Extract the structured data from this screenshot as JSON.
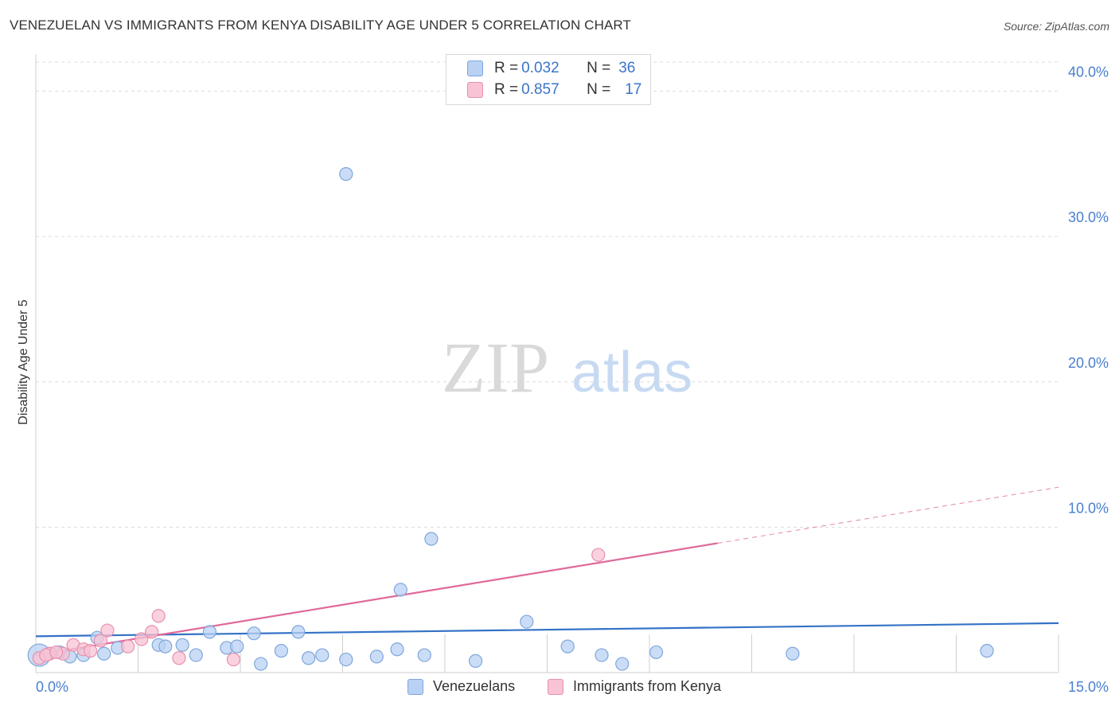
{
  "title": "VENEZUELAN VS IMMIGRANTS FROM KENYA DISABILITY AGE UNDER 5 CORRELATION CHART",
  "source": "Source: ZipAtlas.com",
  "watermark": {
    "zip": "ZIP",
    "atlas": "atlas"
  },
  "legend_top": {
    "rows": [
      {
        "r_label": "R =",
        "r_value": "0.032",
        "n_label": "N =",
        "n_value": "36"
      },
      {
        "r_label": "R =",
        "r_value": "0.857",
        "n_label": "N =",
        "n_value": "17"
      }
    ]
  },
  "legend_bottom": [
    {
      "label": "Venezuelans"
    },
    {
      "label": "Immigrants from Kenya"
    }
  ],
  "colors": {
    "blue_fill": "#b9d2f3",
    "blue_stroke": "#7ea6dc",
    "blue_line": "#3372c7",
    "pink_fill": "#f8c3d4",
    "pink_stroke": "#e890ad",
    "pink_line": "#e0699a",
    "tick": "#4a7fd0",
    "grid": "#dcdcdc"
  },
  "chart_data": {
    "type": "scatter",
    "title": "VENEZUELAN VS IMMIGRANTS FROM KENYA DISABILITY AGE UNDER 5 CORRELATION CHART",
    "xlabel": "",
    "ylabel": "Disability Age Under 5",
    "xlim": [
      0,
      15
    ],
    "ylim": [
      0,
      42
    ],
    "x_tick_labels": [
      {
        "value": 0,
        "label": "0.0%"
      },
      {
        "value": 15,
        "label": "15.0%"
      }
    ],
    "y_tick_labels": [
      {
        "value": 10,
        "label": "10.0%"
      },
      {
        "value": 20,
        "label": "20.0%"
      },
      {
        "value": 30,
        "label": "30.0%"
      },
      {
        "value": 40,
        "label": "40.0%"
      }
    ],
    "x_minor_ticks": [
      1.5,
      3.0,
      4.5,
      6.0,
      7.5,
      9.0,
      10.5,
      12.0,
      13.5,
      15.0
    ],
    "series": [
      {
        "name": "Venezuelans",
        "r": 0.032,
        "n": 36,
        "points": [
          [
            0.05,
            1.2
          ],
          [
            0.2,
            1.3
          ],
          [
            0.35,
            1.4
          ],
          [
            0.5,
            1.1
          ],
          [
            0.7,
            1.2
          ],
          [
            0.9,
            2.4
          ],
          [
            1.0,
            1.3
          ],
          [
            1.2,
            1.7
          ],
          [
            1.8,
            1.9
          ],
          [
            1.9,
            1.8
          ],
          [
            2.15,
            1.9
          ],
          [
            2.35,
            1.2
          ],
          [
            2.55,
            2.8
          ],
          [
            2.8,
            1.7
          ],
          [
            2.95,
            1.8
          ],
          [
            3.2,
            2.7
          ],
          [
            3.3,
            0.6
          ],
          [
            3.6,
            1.5
          ],
          [
            3.85,
            2.8
          ],
          [
            4.0,
            1.0
          ],
          [
            4.2,
            1.2
          ],
          [
            4.55,
            0.9
          ],
          [
            4.55,
            34.3
          ],
          [
            5.0,
            1.1
          ],
          [
            5.3,
            1.6
          ],
          [
            5.35,
            5.7
          ],
          [
            5.7,
            1.2
          ],
          [
            5.8,
            9.2
          ],
          [
            6.45,
            0.8
          ],
          [
            7.2,
            3.5
          ],
          [
            7.8,
            1.8
          ],
          [
            8.3,
            1.2
          ],
          [
            8.6,
            0.6
          ],
          [
            9.1,
            1.4
          ],
          [
            11.1,
            1.3
          ],
          [
            13.95,
            1.5
          ]
        ],
        "trend": {
          "x": [
            0,
            15
          ],
          "y": [
            2.5,
            3.4
          ]
        }
      },
      {
        "name": "Immigrants from Kenya",
        "r": 0.857,
        "n": 17,
        "points": [
          [
            0.05,
            1.0
          ],
          [
            0.2,
            1.3
          ],
          [
            0.4,
            1.3
          ],
          [
            0.55,
            1.9
          ],
          [
            0.7,
            1.6
          ],
          [
            0.8,
            1.5
          ],
          [
            0.95,
            2.2
          ],
          [
            1.05,
            2.9
          ],
          [
            1.35,
            1.8
          ],
          [
            1.55,
            2.3
          ],
          [
            1.7,
            2.8
          ],
          [
            1.8,
            3.9
          ],
          [
            2.1,
            1.0
          ],
          [
            2.9,
            0.9
          ],
          [
            8.25,
            8.1
          ],
          [
            0.15,
            1.2
          ],
          [
            0.3,
            1.4
          ]
        ],
        "trend": {
          "x": [
            0,
            10
          ],
          "y": [
            1.2,
            8.9
          ]
        },
        "trend_extension": {
          "x": [
            10,
            15
          ],
          "y": [
            8.9,
            12.75
          ]
        }
      }
    ]
  }
}
